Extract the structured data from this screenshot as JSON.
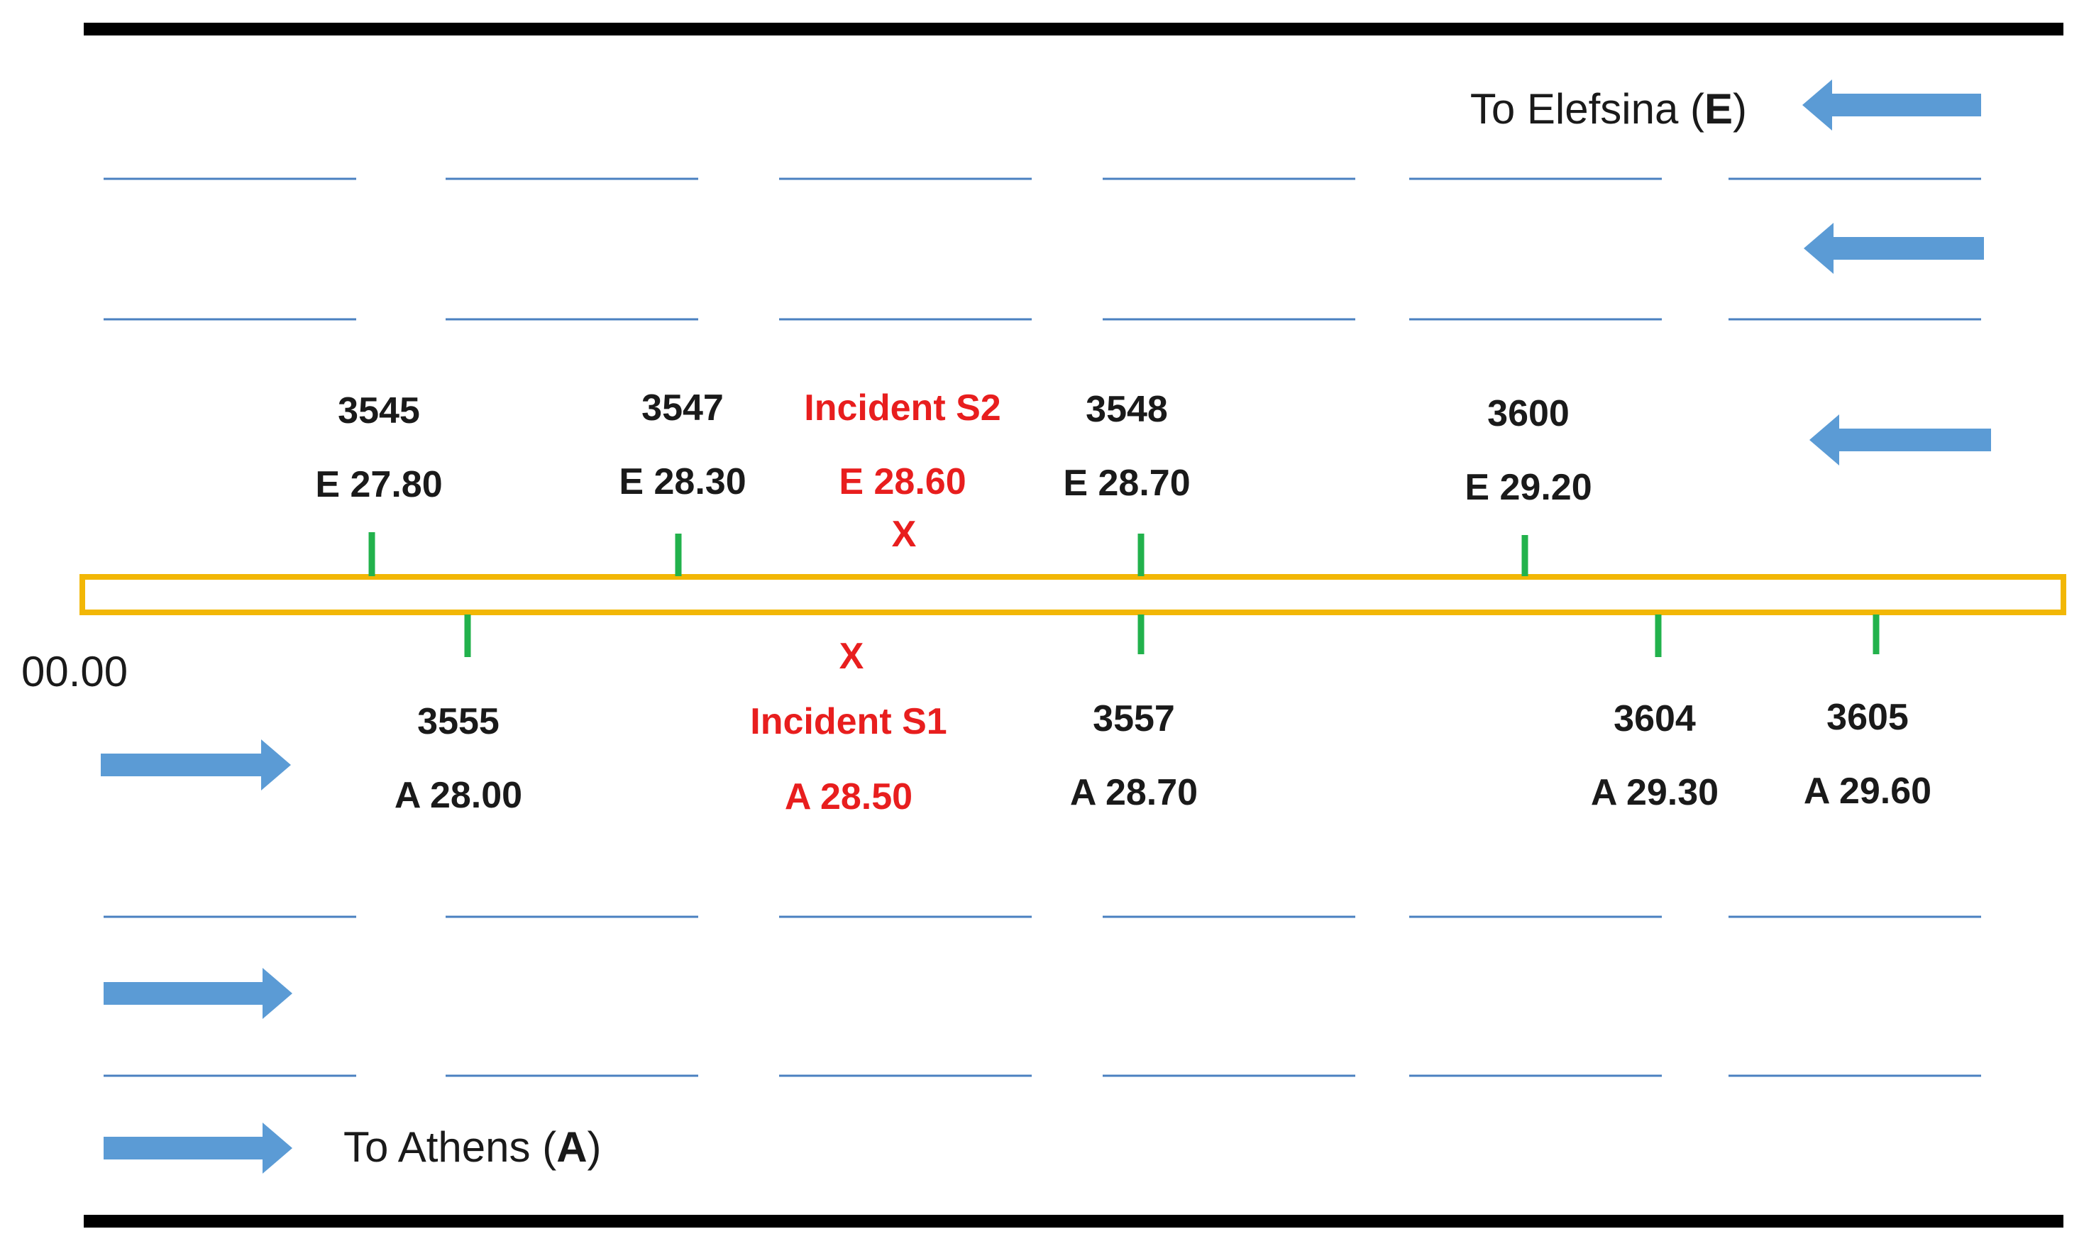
{
  "colors": {
    "border": "#000000",
    "lane_line": "#4a80c0",
    "arrow": "#5b9bd5",
    "median": "#f2b705",
    "detector_tick": "#22b24c",
    "incident": "#e81e1e",
    "text": "#1a1a1a"
  },
  "directions": {
    "elefsina": {
      "prefix": "To Elefsina (",
      "letter": "E",
      "suffix": ")",
      "arrow": "arrow-left-icon"
    },
    "athens": {
      "prefix": "To Athens (",
      "letter": "A",
      "suffix": ")",
      "arrow": "arrow-right-icon"
    }
  },
  "origin_label": "00.00",
  "detectors_top": [
    {
      "id": "3545",
      "km": "E 27.80"
    },
    {
      "id": "3547",
      "km": "E 28.30"
    },
    {
      "id": "3548",
      "km": "E 28.70"
    },
    {
      "id": "3600",
      "km": "E 29.20"
    }
  ],
  "detectors_bottom": [
    {
      "id": "3555",
      "km": "A 28.00"
    },
    {
      "id": "3557",
      "km": "A 28.70"
    },
    {
      "id": "3604",
      "km": "A 29.30"
    },
    {
      "id": "3605",
      "km": "A 29.60"
    }
  ],
  "incidents": {
    "s2": {
      "label": "Incident S2",
      "km": "E 28.60",
      "marker": "X"
    },
    "s1": {
      "label": "Incident S1",
      "km": "A 28.50",
      "marker": "X"
    }
  }
}
